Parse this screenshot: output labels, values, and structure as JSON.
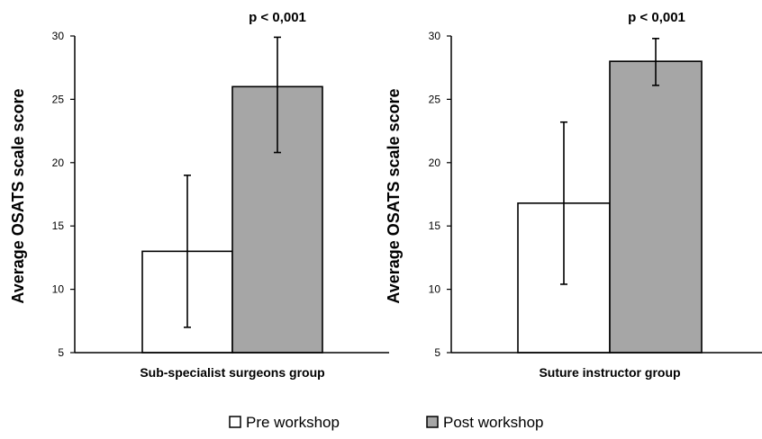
{
  "chart_data": [
    {
      "type": "bar",
      "categories": [
        "Sub-specialist surgeons group"
      ],
      "xlabel": "Sub-specialist surgeons group",
      "ylabel": "Average OSATS scale score",
      "ylim": [
        5,
        30
      ],
      "yticks": [
        "5",
        "10",
        "15",
        "20",
        "25",
        "30"
      ],
      "annotation": "p < 0,001",
      "grid": false,
      "series": [
        {
          "name": "Pre workshop",
          "values": [
            13
          ],
          "error_low": [
            7
          ],
          "error_high": [
            19
          ],
          "color": "#ffffff"
        },
        {
          "name": "Post workshop",
          "values": [
            26
          ],
          "error_low": [
            20.8
          ],
          "error_high": [
            29.9
          ],
          "color": "#a6a6a6"
        }
      ]
    },
    {
      "type": "bar",
      "categories": [
        "Suture instructor group"
      ],
      "xlabel": "Suture instructor group",
      "ylabel": "Average OSATS scale score",
      "ylim": [
        5,
        30
      ],
      "yticks": [
        "5",
        "10",
        "15",
        "20",
        "25",
        "30"
      ],
      "annotation": "p < 0,001",
      "grid": false,
      "series": [
        {
          "name": "Pre workshop",
          "values": [
            16.8
          ],
          "error_low": [
            10.4
          ],
          "error_high": [
            23.2
          ],
          "color": "#ffffff"
        },
        {
          "name": "Post workshop",
          "values": [
            28
          ],
          "error_low": [
            26.1
          ],
          "error_high": [
            29.8
          ],
          "color": "#a6a6a6"
        }
      ]
    }
  ],
  "legend": {
    "placement": "bottom-center",
    "items": [
      {
        "label": "Pre workshop",
        "color": "#ffffff"
      },
      {
        "label": "Post workshop",
        "color": "#a6a6a6"
      }
    ]
  }
}
